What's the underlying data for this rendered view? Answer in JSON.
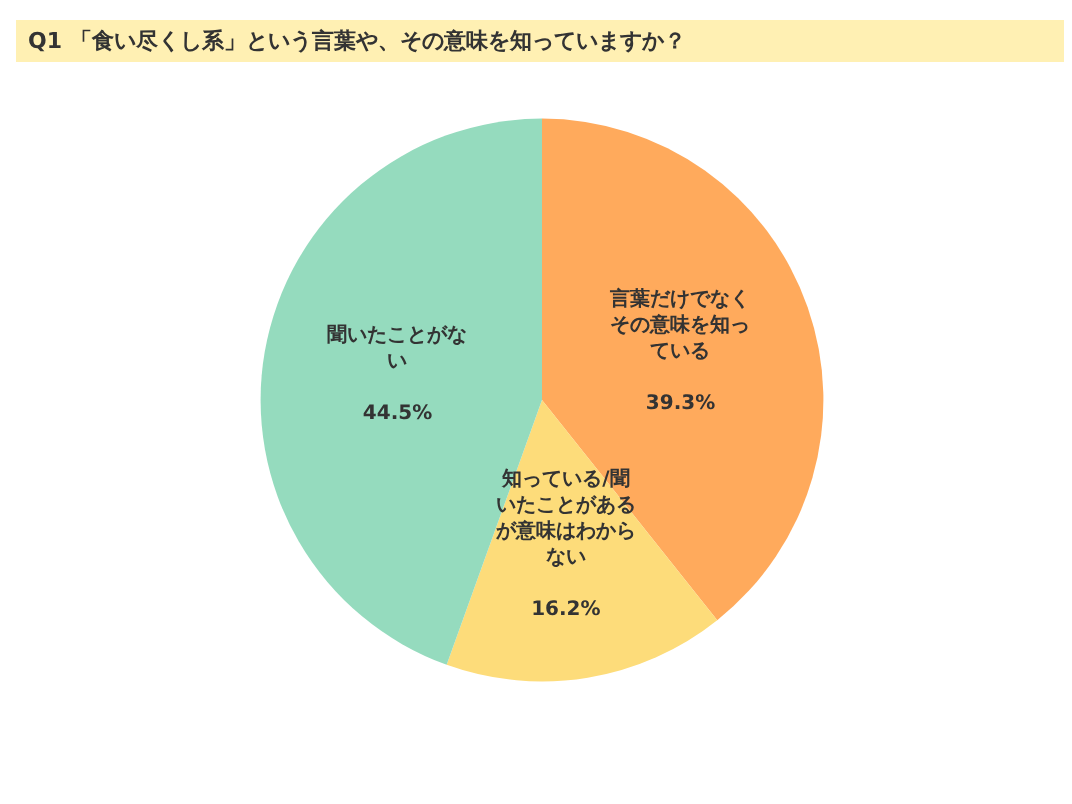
{
  "chart_data": {
    "type": "pie",
    "title": "Q1 「食い尽くし系」という言葉や、その意味を知っていますか？",
    "categories": [
      "言葉だけでなくその意味を知っている",
      "知っている/聞いたことがあるが意味はわからない",
      "聞いたことがない"
    ],
    "value_labels": [
      "39.3%",
      "16.2%",
      "44.5%"
    ],
    "values": [
      39.3,
      16.2,
      44.5
    ],
    "colors": [
      "#ffaa5c",
      "#fddc7a",
      "#95dbbe"
    ],
    "legend": false
  }
}
